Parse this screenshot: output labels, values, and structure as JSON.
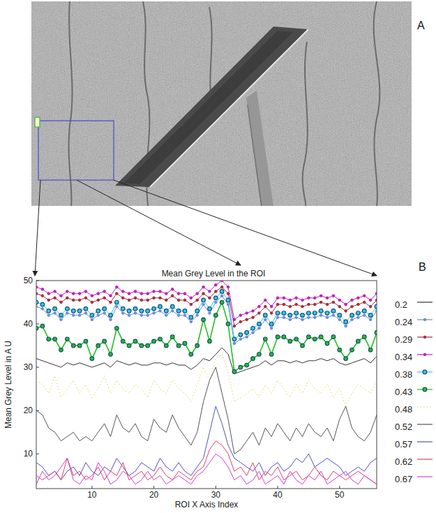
{
  "figure": {
    "panel_labels": [
      "A",
      "B"
    ]
  },
  "chart_data": {
    "type": "line",
    "title": "Mean Grey Level in the ROI",
    "x_label": "ROI X Axis Index",
    "y_label": "Mean Grey Level in A U",
    "x": [
      1,
      2,
      3,
      4,
      5,
      6,
      7,
      8,
      9,
      10,
      11,
      12,
      13,
      14,
      15,
      16,
      17,
      18,
      19,
      20,
      21,
      22,
      23,
      24,
      25,
      26,
      27,
      28,
      29,
      30,
      31,
      32,
      33,
      34,
      35,
      36,
      37,
      38,
      39,
      40,
      41,
      42,
      43,
      44,
      45,
      46,
      47,
      48,
      49,
      50,
      51,
      52,
      53,
      54,
      55,
      56
    ],
    "xlim": [
      1,
      56
    ],
    "xticks": [
      10,
      20,
      30,
      40,
      50
    ],
    "ylim": [
      2,
      50
    ],
    "yticks": [
      10,
      20,
      30,
      40,
      50
    ],
    "grid": false,
    "legend": "right",
    "series": [
      {
        "name": "0.2",
        "color": "#333333",
        "marker": "none",
        "line_style": "solid",
        "values": [
          32,
          31.5,
          31,
          30.5,
          30,
          31,
          30.5,
          31,
          30.5,
          30,
          30.5,
          31,
          30,
          31.5,
          31,
          30.5,
          31,
          30.5,
          30.5,
          31,
          31,
          30.5,
          31,
          30.5,
          30.5,
          29.5,
          30.5,
          32,
          31.5,
          33,
          34.5,
          33,
          28.5,
          29,
          29.5,
          30,
          30.5,
          31.5,
          30.5,
          31.5,
          31.5,
          31,
          31.5,
          31,
          31.5,
          31.5,
          32,
          31.5,
          32,
          31,
          30.5,
          31,
          31.5,
          32,
          31,
          32.5
        ]
      },
      {
        "name": "0.24",
        "color": "#6a8fd8",
        "marker": "dot",
        "line_style": "solid",
        "values": [
          44,
          43.5,
          42,
          42.5,
          41,
          42.5,
          42,
          42,
          42.5,
          41,
          42,
          42.5,
          41,
          44,
          42.5,
          42,
          42.5,
          42,
          42,
          42.5,
          43,
          42,
          43,
          42,
          42,
          40.5,
          42,
          44.5,
          42.5,
          45,
          46.5,
          44.5,
          35.5,
          36.5,
          37,
          38,
          39,
          41,
          39,
          41.5,
          41.5,
          41,
          41.5,
          41,
          41.5,
          41.5,
          42,
          41.5,
          42,
          41,
          39.5,
          41,
          41.5,
          42,
          41,
          43
        ]
      },
      {
        "name": "0.29",
        "color": "#a0303c",
        "marker": "dot",
        "line_style": "solid",
        "values": [
          47,
          46.5,
          45.5,
          46,
          45,
          46,
          45.5,
          45.5,
          46,
          45,
          45.5,
          46,
          45,
          47,
          46,
          45.5,
          46,
          45.5,
          45.5,
          46,
          46,
          45.5,
          46.5,
          45.5,
          45.5,
          44.5,
          45.5,
          47,
          46,
          47.5,
          48.5,
          47,
          39.5,
          40.5,
          41,
          41.5,
          42.5,
          44,
          42.5,
          44.5,
          44.5,
          44,
          44.5,
          44,
          44.5,
          44.5,
          45,
          44.5,
          45,
          44,
          43,
          44,
          44.5,
          45,
          44,
          45.5
        ]
      },
      {
        "name": "0.34",
        "color": "#c020c0",
        "marker": "dot",
        "line_style": "solid",
        "values": [
          48.5,
          48,
          47,
          47.5,
          46.5,
          47.5,
          47,
          47,
          47.5,
          46.5,
          47,
          47.5,
          46.5,
          48.5,
          47.5,
          47,
          47.5,
          47,
          47,
          47.5,
          47.5,
          47,
          48,
          47,
          47,
          46,
          47,
          48.5,
          47.5,
          49,
          50,
          48.5,
          41,
          42,
          42.5,
          43,
          44,
          45.5,
          44,
          46,
          46,
          45.5,
          46,
          45.5,
          46,
          46,
          46.5,
          46,
          46.5,
          45.5,
          44.5,
          45.5,
          46,
          46.5,
          45.5,
          47
        ]
      },
      {
        "name": "0.38",
        "color": "#30c8e8",
        "marker": "circle",
        "line_style": "solid",
        "values": [
          45,
          44.5,
          43,
          43.5,
          42,
          43.5,
          43,
          43,
          43.5,
          42,
          43,
          43.5,
          42,
          45,
          43.5,
          43,
          43.5,
          43,
          43,
          43.5,
          44,
          43,
          44,
          43,
          43,
          41.5,
          43,
          45.5,
          43.5,
          46,
          47.5,
          45.5,
          36.5,
          37.5,
          38,
          39,
          40,
          42,
          40,
          42.5,
          42.5,
          42,
          42.5,
          42,
          42.5,
          42.5,
          43,
          42.5,
          43,
          42,
          40.5,
          42,
          42.5,
          43,
          42,
          44
        ]
      },
      {
        "name": "0.43",
        "color": "#20c020",
        "marker": "circle",
        "line_style": "solid",
        "values": [
          39,
          39.5,
          36.5,
          36.5,
          34,
          36.5,
          35,
          35,
          36,
          32,
          35,
          36,
          33,
          39,
          36,
          35,
          36,
          35,
          35,
          36,
          36.5,
          35,
          37,
          35,
          35.5,
          33,
          35,
          41,
          36,
          42,
          45,
          40,
          29,
          30,
          30.5,
          32,
          33,
          36.5,
          33,
          37,
          37,
          36,
          36.5,
          35,
          37,
          36.5,
          37,
          35.5,
          37,
          34,
          32,
          34,
          36,
          37,
          34,
          38
        ]
      },
      {
        "name": "0.48",
        "color": "#e0d850",
        "marker": "none",
        "line_style": "dotted",
        "values": [
          27,
          26,
          24,
          28,
          23,
          25,
          27,
          24,
          26,
          23,
          25,
          28,
          24,
          27,
          25,
          24,
          26,
          25,
          23,
          27,
          25,
          24,
          27,
          25,
          24,
          22,
          26,
          30,
          27,
          32,
          33,
          29,
          22,
          23,
          24,
          25,
          23,
          26,
          24,
          27,
          25,
          23,
          26,
          24,
          27,
          25,
          24,
          26,
          23,
          25,
          21,
          24,
          26,
          25,
          24,
          27
        ]
      },
      {
        "name": "0.52",
        "color": "#555555",
        "marker": "none",
        "line_style": "solid",
        "values": [
          20,
          19,
          16,
          15,
          13,
          14,
          15,
          13,
          14,
          13,
          15,
          17,
          14,
          19,
          16,
          15,
          17,
          14,
          13,
          18,
          16,
          15,
          19,
          16,
          14,
          12,
          15,
          22,
          27,
          30,
          24,
          18,
          10,
          11,
          13,
          15,
          12,
          16,
          14,
          17,
          15,
          13,
          16,
          14,
          17,
          15,
          14,
          16,
          13,
          18,
          21,
          16,
          14,
          13,
          15,
          19
        ]
      },
      {
        "name": "0.57",
        "color": "#5050c8",
        "marker": "none",
        "line_style": "solid",
        "values": [
          8,
          7,
          5,
          6,
          4,
          6,
          7,
          5,
          8,
          6,
          5,
          7,
          6,
          9,
          7,
          5,
          6,
          8,
          7,
          6,
          9,
          7,
          6,
          8,
          6,
          5,
          7,
          9,
          15,
          21,
          17,
          12,
          9,
          8,
          7,
          6,
          8,
          5,
          7,
          8,
          6,
          7,
          9,
          8,
          10,
          7,
          8,
          9,
          8,
          7,
          5,
          6,
          7,
          6,
          8,
          9
        ]
      },
      {
        "name": "0.62",
        "color": "#e04060",
        "marker": "none",
        "line_style": "solid",
        "values": [
          5,
          4,
          5,
          6,
          4,
          9,
          5,
          6,
          4,
          5,
          7,
          4,
          6,
          5,
          8,
          4,
          5,
          6,
          4,
          5,
          7,
          5,
          4,
          6,
          5,
          4,
          6,
          7,
          11,
          13,
          12,
          10,
          6,
          7,
          5,
          8,
          4,
          6,
          5,
          7,
          4,
          5,
          6,
          4,
          5,
          7,
          5,
          4,
          6,
          5,
          4,
          5,
          6,
          5,
          4,
          3
        ]
      },
      {
        "name": "0.67",
        "color": "#d040d0",
        "marker": "none",
        "line_style": "solid",
        "values": [
          3,
          6,
          4,
          5,
          7,
          9,
          4,
          3,
          5,
          4,
          8,
          6,
          3,
          4,
          6,
          5,
          3,
          4,
          6,
          4,
          5,
          3,
          4,
          5,
          4,
          3,
          5,
          6,
          8,
          10,
          9,
          7,
          4,
          5,
          3,
          4,
          6,
          3,
          4,
          5,
          3,
          6,
          4,
          3,
          5,
          4,
          6,
          3,
          4,
          5,
          6,
          4,
          3,
          5,
          4,
          3
        ]
      }
    ]
  }
}
